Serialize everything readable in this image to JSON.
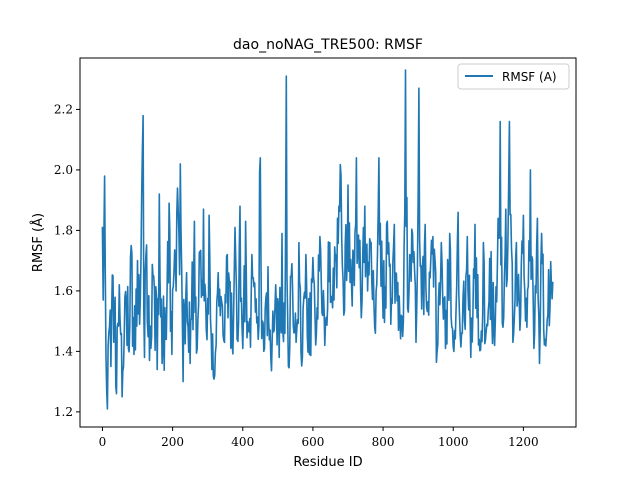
{
  "chart_data": {
    "type": "line",
    "title": "dao_noNAG_TRE500:  RMSF",
    "xlabel": "Residue ID",
    "ylabel": "RMSF (Å)",
    "xlim": [
      -64,
      1350
    ],
    "ylim": [
      1.15,
      2.37
    ],
    "xticks": [
      0,
      200,
      400,
      600,
      800,
      1000,
      1200
    ],
    "yticks": [
      1.2,
      1.4,
      1.6,
      1.8,
      2.0,
      2.2
    ],
    "xtick_labels": [
      "0",
      "200",
      "400",
      "600",
      "800",
      "1000",
      "1200"
    ],
    "ytick_labels": [
      "1.2",
      "1.4",
      "1.6",
      "1.8",
      "2.0",
      "2.2"
    ],
    "grid": false,
    "legend": "upper-right",
    "series": [
      {
        "name": "RMSF (A)",
        "color": "#1f77b4",
        "x_start": 0,
        "x_end": 1285,
        "spikes": [
          [
            0,
            1.81
          ],
          [
            2,
            1.57
          ],
          [
            6,
            1.98
          ],
          [
            10,
            1.38
          ],
          [
            14,
            1.21
          ],
          [
            18,
            1.46
          ],
          [
            24,
            1.35
          ],
          [
            30,
            1.65
          ],
          [
            40,
            1.26
          ],
          [
            48,
            1.62
          ],
          [
            56,
            1.25
          ],
          [
            64,
            1.58
          ],
          [
            74,
            1.41
          ],
          [
            82,
            1.75
          ],
          [
            90,
            1.39
          ],
          [
            100,
            1.7
          ],
          [
            108,
            1.57
          ],
          [
            113,
            2.01
          ],
          [
            116,
            2.18
          ],
          [
            120,
            1.38
          ],
          [
            125,
            1.8
          ],
          [
            134,
            1.37
          ],
          [
            145,
            1.68
          ],
          [
            156,
            1.34
          ],
          [
            162,
            1.92
          ],
          [
            170,
            1.36
          ],
          [
            180,
            1.44
          ],
          [
            190,
            1.89
          ],
          [
            198,
            1.39
          ],
          [
            205,
            1.71
          ],
          [
            214,
            1.94
          ],
          [
            222,
            2.02
          ],
          [
            230,
            1.3
          ],
          [
            240,
            1.66
          ],
          [
            250,
            1.36
          ],
          [
            262,
            1.83
          ],
          [
            270,
            1.41
          ],
          [
            278,
            1.73
          ],
          [
            288,
            1.87
          ],
          [
            296,
            1.47
          ],
          [
            304,
            1.85
          ],
          [
            312,
            1.34
          ],
          [
            320,
            1.32
          ],
          [
            330,
            1.66
          ],
          [
            342,
            1.55
          ],
          [
            356,
            1.72
          ],
          [
            370,
            1.42
          ],
          [
            378,
            1.81
          ],
          [
            384,
            1.44
          ],
          [
            392,
            1.88
          ],
          [
            400,
            1.41
          ],
          [
            408,
            1.83
          ],
          [
            416,
            1.47
          ],
          [
            426,
            1.72
          ],
          [
            436,
            1.53
          ],
          [
            444,
            1.44
          ],
          [
            449,
            2.13
          ],
          [
            456,
            1.5
          ],
          [
            462,
            1.41
          ],
          [
            472,
            1.68
          ],
          [
            484,
            1.44
          ],
          [
            494,
            1.62
          ],
          [
            504,
            1.38
          ],
          [
            512,
            1.79
          ],
          [
            520,
            1.46
          ],
          [
            524,
            2.31
          ],
          [
            530,
            1.35
          ],
          [
            540,
            1.69
          ],
          [
            552,
            1.43
          ],
          [
            560,
            1.76
          ],
          [
            570,
            1.38
          ],
          [
            580,
            1.72
          ],
          [
            590,
            1.39
          ],
          [
            600,
            1.71
          ],
          [
            610,
            1.46
          ],
          [
            620,
            1.78
          ],
          [
            634,
            1.42
          ],
          [
            648,
            1.76
          ],
          [
            660,
            1.57
          ],
          [
            670,
            1.84
          ],
          [
            679,
            2.04
          ],
          [
            688,
            1.52
          ],
          [
            700,
            1.95
          ],
          [
            712,
            1.55
          ],
          [
            724,
            2.04
          ],
          [
            736,
            1.6
          ],
          [
            748,
            1.88
          ],
          [
            756,
            1.6
          ],
          [
            766,
            1.76
          ],
          [
            778,
            1.46
          ],
          [
            788,
            2.04
          ],
          [
            800,
            1.51
          ],
          [
            812,
            1.83
          ],
          [
            822,
            1.49
          ],
          [
            832,
            1.82
          ],
          [
            844,
            1.47
          ],
          [
            856,
            1.45
          ],
          [
            864,
            2.33
          ],
          [
            872,
            1.53
          ],
          [
            884,
            1.79
          ],
          [
            894,
            1.43
          ],
          [
            902,
            2.27
          ],
          [
            910,
            1.54
          ],
          [
            920,
            1.82
          ],
          [
            930,
            1.52
          ],
          [
            942,
            1.78
          ],
          [
            954,
            1.4
          ],
          [
            966,
            1.76
          ],
          [
            978,
            1.41
          ],
          [
            990,
            1.79
          ],
          [
            1002,
            1.4
          ],
          [
            1014,
            1.86
          ],
          [
            1026,
            1.46
          ],
          [
            1040,
            1.78
          ],
          [
            1052,
            1.51
          ],
          [
            1062,
            1.82
          ],
          [
            1074,
            1.44
          ],
          [
            1086,
            1.76
          ],
          [
            1096,
            1.49
          ],
          [
            1108,
            1.73
          ],
          [
            1118,
            1.42
          ],
          [
            1128,
            1.84
          ],
          [
            1134,
            2.16
          ],
          [
            1142,
            1.48
          ],
          [
            1150,
            1.87
          ],
          [
            1160,
            2.16
          ],
          [
            1170,
            1.43
          ],
          [
            1180,
            1.76
          ],
          [
            1190,
            1.47
          ],
          [
            1200,
            1.85
          ],
          [
            1210,
            1.48
          ],
          [
            1220,
            2.0
          ],
          [
            1230,
            1.41
          ],
          [
            1240,
            1.84
          ],
          [
            1246,
            1.36
          ],
          [
            1252,
            1.79
          ],
          [
            1262,
            1.44
          ],
          [
            1272,
            1.67
          ],
          [
            1280,
            1.62
          ],
          [
            1285,
            1.63
          ]
        ]
      }
    ]
  }
}
